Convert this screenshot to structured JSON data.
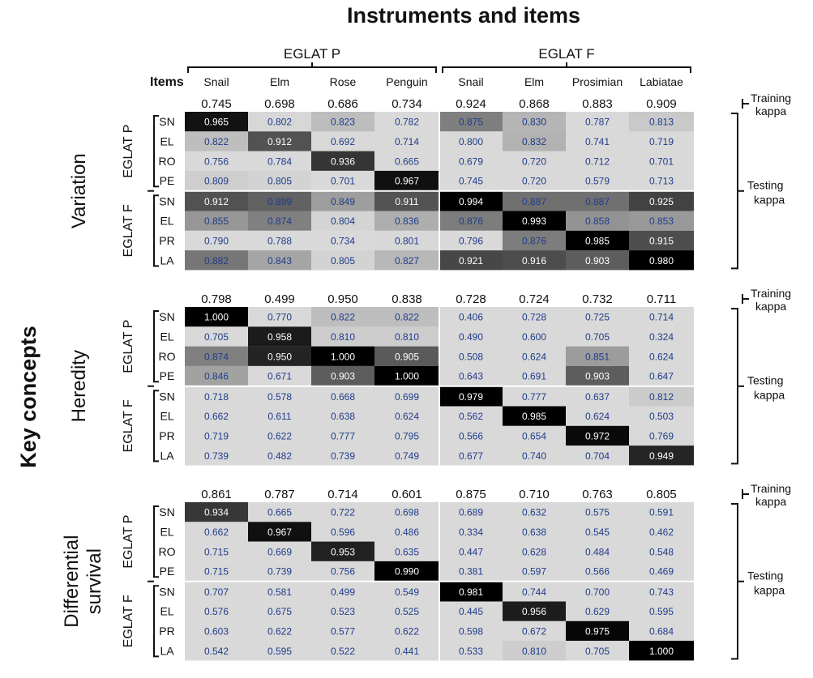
{
  "title": "Instruments and items",
  "y_title": "Key concepts",
  "items_label": "Items",
  "instruments": [
    {
      "name": "EGLAT P",
      "items": [
        "Snail",
        "Elm",
        "Rose",
        "Penguin"
      ]
    },
    {
      "name": "EGLAT F",
      "items": [
        "Snail",
        "Elm",
        "Prosimian",
        "Labiatae"
      ]
    }
  ],
  "row_group_labels": [
    "EGLAT P",
    "EGLAT F"
  ],
  "row_codes": [
    "SN",
    "EL",
    "RO",
    "PE",
    "SN",
    "EL",
    "PR",
    "LA"
  ],
  "side_labels": {
    "training": [
      "Training",
      "kappa"
    ],
    "testing": [
      "Testing",
      "kappa"
    ]
  },
  "chart_data": {
    "type": "heatmap",
    "title": "Instruments and items",
    "ylabel": "Key concepts",
    "columns": [
      "EGLAT P Snail",
      "EGLAT P Elm",
      "EGLAT P Rose",
      "EGLAT P Penguin",
      "EGLAT F Snail",
      "EGLAT F Elm",
      "EGLAT F Prosimian",
      "EGLAT F Labiatae"
    ],
    "rows": [
      "EGLAT P SN",
      "EGLAT P EL",
      "EGLAT P RO",
      "EGLAT P PE",
      "EGLAT F SN",
      "EGLAT F EL",
      "EGLAT F PR",
      "EGLAT F LA"
    ],
    "panels": [
      {
        "concept": "Variation",
        "concept_lines": [
          "Variation"
        ],
        "training_kappa": [
          "0.745",
          "0.698",
          "0.686",
          "0.734",
          "0.924",
          "0.868",
          "0.883",
          "0.909"
        ],
        "testing_kappa": [
          [
            "0.965",
            "0.802",
            "0.823",
            "0.782",
            "0.875",
            "0.830",
            "0.787",
            "0.813"
          ],
          [
            "0.822",
            "0.912",
            "0.692",
            "0.714",
            "0.800",
            "0.832",
            "0.741",
            "0.719"
          ],
          [
            "0.756",
            "0.784",
            "0.936",
            "0.665",
            "0.679",
            "0.720",
            "0.712",
            "0.701"
          ],
          [
            "0.809",
            "0.805",
            "0.701",
            "0.967",
            "0.745",
            "0.720",
            "0.579",
            "0.713"
          ],
          [
            "0.912",
            "0.899",
            "0.849",
            "0.911",
            "0.994",
            "0.887",
            "0.887",
            "0.925"
          ],
          [
            "0.855",
            "0.874",
            "0.804",
            "0.836",
            "0.876",
            "0.993",
            "0.858",
            "0.853"
          ],
          [
            "0.790",
            "0.788",
            "0.734",
            "0.801",
            "0.796",
            "0.876",
            "0.985",
            "0.915"
          ],
          [
            "0.882",
            "0.843",
            "0.805",
            "0.827",
            "0.921",
            "0.916",
            "0.903",
            "0.980"
          ]
        ]
      },
      {
        "concept": "Heredity",
        "concept_lines": [
          "Heredity"
        ],
        "training_kappa": [
          "0.798",
          "0.499",
          "0.950",
          "0.838",
          "0.728",
          "0.724",
          "0.732",
          "0.711"
        ],
        "testing_kappa": [
          [
            "1.000",
            "0.770",
            "0.822",
            "0.822",
            "0.406",
            "0.728",
            "0.725",
            "0.714"
          ],
          [
            "0.705",
            "0.958",
            "0.810",
            "0.810",
            "0.490",
            "0.600",
            "0.705",
            "0.324"
          ],
          [
            "0.874",
            "0.950",
            "1.000",
            "0.905",
            "0.508",
            "0.624",
            "0.851",
            "0.624"
          ],
          [
            "0.846",
            "0.671",
            "0.903",
            "1.000",
            "0.643",
            "0.691",
            "0.903",
            "0.647"
          ],
          [
            "0.718",
            "0.578",
            "0.668",
            "0.699",
            "0.979",
            "0.777",
            "0.637",
            "0.812"
          ],
          [
            "0.662",
            "0.611",
            "0.638",
            "0.624",
            "0.562",
            "0.985",
            "0.624",
            "0.503"
          ],
          [
            "0.719",
            "0.622",
            "0.777",
            "0.795",
            "0.566",
            "0.654",
            "0.972",
            "0.769"
          ],
          [
            "0.739",
            "0.482",
            "0.739",
            "0.749",
            "0.677",
            "0.740",
            "0.704",
            "0.949"
          ]
        ]
      },
      {
        "concept": "Differential survival",
        "concept_lines": [
          "Differential",
          "survival"
        ],
        "training_kappa": [
          "0.861",
          "0.787",
          "0.714",
          "0.601",
          "0.875",
          "0.710",
          "0.763",
          "0.805"
        ],
        "testing_kappa": [
          [
            "0.934",
            "0.665",
            "0.722",
            "0.698",
            "0.689",
            "0.632",
            "0.575",
            "0.591"
          ],
          [
            "0.662",
            "0.967",
            "0.596",
            "0.486",
            "0.334",
            "0.638",
            "0.545",
            "0.462"
          ],
          [
            "0.715",
            "0.669",
            "0.953",
            "0.635",
            "0.447",
            "0.628",
            "0.484",
            "0.548"
          ],
          [
            "0.715",
            "0.739",
            "0.756",
            "0.990",
            "0.381",
            "0.597",
            "0.566",
            "0.469"
          ],
          [
            "0.707",
            "0.581",
            "0.499",
            "0.549",
            "0.981",
            "0.744",
            "0.700",
            "0.743"
          ],
          [
            "0.576",
            "0.675",
            "0.523",
            "0.525",
            "0.445",
            "0.956",
            "0.629",
            "0.595"
          ],
          [
            "0.603",
            "0.622",
            "0.577",
            "0.622",
            "0.598",
            "0.672",
            "0.975",
            "0.684"
          ],
          [
            "0.542",
            "0.595",
            "0.522",
            "0.441",
            "0.533",
            "0.810",
            "0.705",
            "1.000"
          ]
        ]
      }
    ],
    "colors": {
      "low": "#d9d9d9",
      "high": "#000000",
      "low_text": "#1f3d8a",
      "high_text": "#ffffff"
    },
    "grid": false,
    "legend": "none"
  }
}
